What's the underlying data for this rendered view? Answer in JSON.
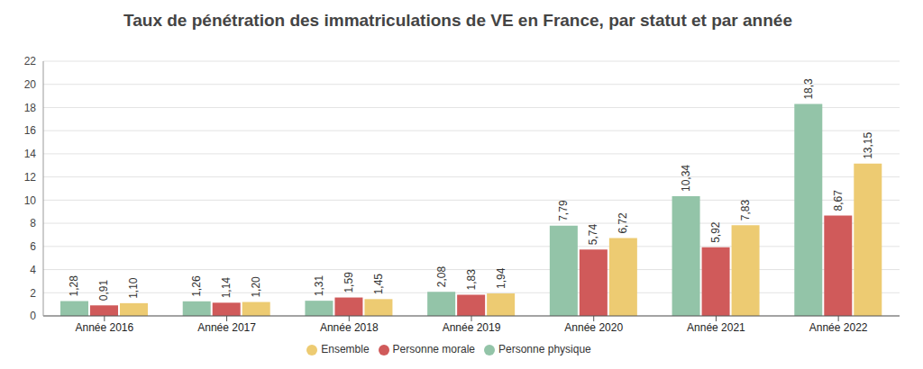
{
  "chart_data": {
    "type": "bar",
    "title": "Taux de pénétration des immatriculations de VE en France, par statut et par année",
    "categories": [
      "Année 2016",
      "Année 2017",
      "Année 2018",
      "Année 2019",
      "Année 2020",
      "Année 2021",
      "Année 2022"
    ],
    "series": [
      {
        "name": "Personne physique",
        "color": "#93c4a8",
        "values": [
          1.28,
          1.26,
          1.31,
          2.08,
          7.79,
          10.34,
          18.3
        ],
        "value_labels": [
          "1,28",
          "1,26",
          "1,31",
          "2,08",
          "7,79",
          "10,34",
          "18,3"
        ]
      },
      {
        "name": "Personne morale",
        "color": "#d05a5a",
        "values": [
          0.91,
          1.14,
          1.59,
          1.83,
          5.74,
          5.92,
          8.67
        ],
        "value_labels": [
          "0,91",
          "1,14",
          "1,59",
          "1,83",
          "5,74",
          "5,92",
          "8,67"
        ]
      },
      {
        "name": "Ensemble",
        "color": "#edcb72",
        "values": [
          1.1,
          1.2,
          1.45,
          1.94,
          6.72,
          7.83,
          13.15
        ],
        "value_labels": [
          "1,10",
          "1,20",
          "1,45",
          "1,94",
          "6,72",
          "7,83",
          "13,15"
        ]
      }
    ],
    "ylim": [
      0,
      22
    ],
    "yticks": [
      0,
      2,
      4,
      6,
      8,
      10,
      12,
      14,
      16,
      18,
      20,
      22
    ],
    "grid": true,
    "data_labels": true,
    "legend": "bottom"
  }
}
